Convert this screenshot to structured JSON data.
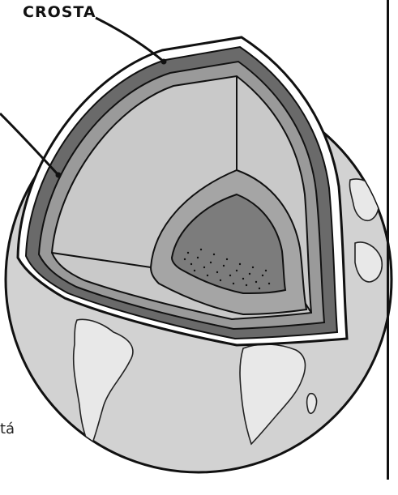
{
  "labels": {
    "crust_label": "CROSTA",
    "text_fragment": "tá"
  },
  "colors": {
    "globe_fill": "#cfcfcf",
    "layer_dark": "#6e6e6e",
    "layer_mid": "#9a9a9a",
    "layer_light": "#c8c8c8",
    "core_fill": "#7a7a7a",
    "outline": "#111111"
  }
}
